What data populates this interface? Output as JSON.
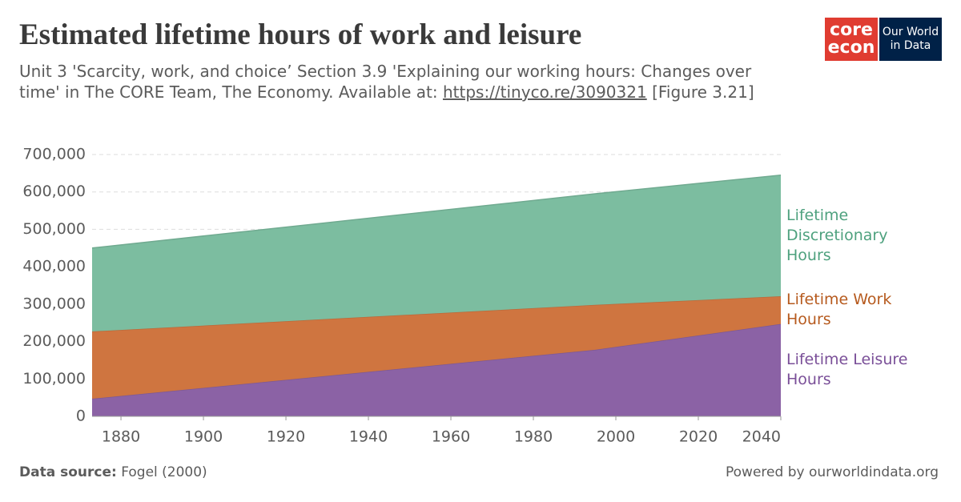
{
  "chart_data": {
    "type": "stacked-area",
    "title": "Estimated lifetime hours of work and leisure",
    "subtitle": "Unit 3 'Scarcity, work, and choice’ Section 3.9 'Explaining our working hours: Changes over time' in The CORE Team, The Economy. Available at: ",
    "subtitle_link": "https://tinyco.re/3090321",
    "subtitle_end": " [Figure 3.21]",
    "x": [
      1873,
      1995,
      2040
    ],
    "xlim": [
      1873,
      2040
    ],
    "xticks": [
      1880,
      1900,
      1920,
      1940,
      1960,
      1980,
      2000,
      2020,
      2040
    ],
    "ylim": [
      0,
      700000
    ],
    "yticks": [
      0,
      {
        "value": 100000,
        "label": "100,000"
      },
      {
        "value": 200000,
        "label": "200,000"
      },
      {
        "value": 300000,
        "label": "300,000"
      },
      {
        "value": 400000,
        "label": "400,000"
      },
      {
        "value": 500000,
        "label": "500,000"
      },
      {
        "value": 600000,
        "label": "600,000"
      },
      {
        "value": 700000,
        "label": "700,000"
      }
    ],
    "grid": true,
    "series": [
      {
        "name": "Lifetime Leisure Hours",
        "color": "#8b62a5",
        "label_color": "#7a4f98",
        "values": [
          47000,
          178000,
          247000
        ]
      },
      {
        "name": "Lifetime Work Hours",
        "color": "#cf7540",
        "label_color": "#b65a1e",
        "values": [
          180000,
          120000,
          74000
        ]
      },
      {
        "name": "Lifetime Discretionary Hours",
        "color": "#7cbda0",
        "label_color": "#4ea17e",
        "values": [
          223000,
          297000,
          324000
        ]
      }
    ],
    "source_label": "Data source:",
    "source": "Fogel (2000)",
    "credit": "Powered by ourworldindata.org",
    "logo_core_top": "core",
    "logo_core_bottom": "econ",
    "logo_owid_top": "Our World",
    "logo_owid_bottom": "in Data"
  }
}
